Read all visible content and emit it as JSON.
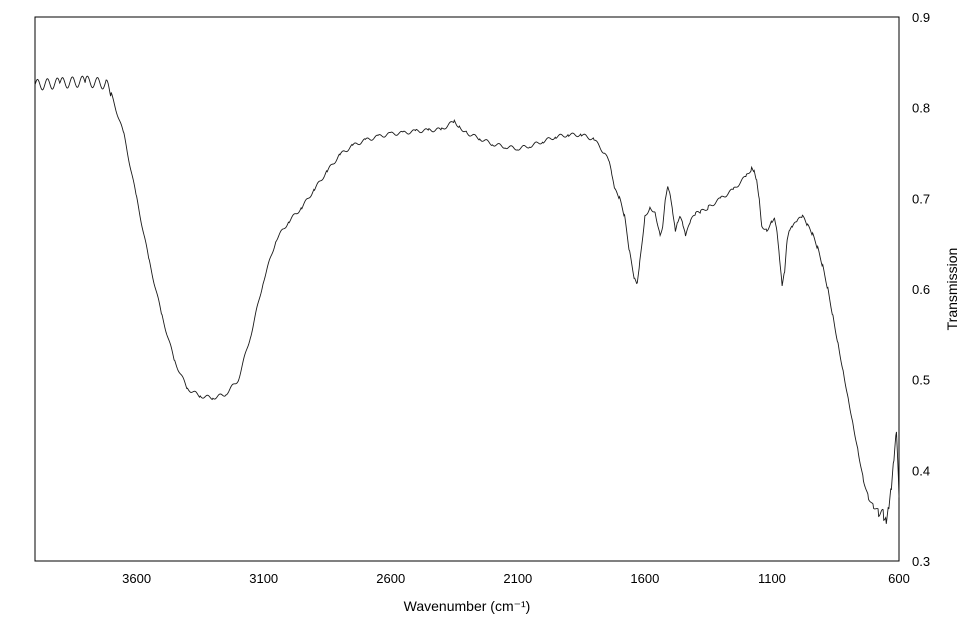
{
  "chart_data": {
    "type": "line",
    "title": "",
    "xlabel": "Wavenumber (cm⁻¹)",
    "ylabel": "Transmission",
    "xlim": [
      4000,
      600
    ],
    "x_reversed": true,
    "ylim": [
      0.3,
      0.9
    ],
    "y_axis_side": "right",
    "x_ticks": [
      3600,
      3100,
      2600,
      2100,
      1600,
      1100,
      600
    ],
    "x_tick_labels": [
      "3600",
      "3100",
      "2600",
      "2100",
      "1600",
      "1100",
      "600"
    ],
    "y_ticks": [
      0.3,
      0.4,
      0.5,
      0.6,
      0.7,
      0.8,
      0.9
    ],
    "y_tick_labels": [
      "0.3",
      "0.4",
      "0.5",
      "0.6",
      "0.7",
      "0.8",
      "0.9"
    ],
    "grid": false,
    "legend": "none",
    "line_color": "#1a1a1a",
    "series": [
      {
        "x": [
          4000,
          3900,
          3800,
          3720,
          3700,
          3650,
          3600,
          3550,
          3500,
          3450,
          3400,
          3350,
          3300,
          3250,
          3200,
          3150,
          3100,
          3050,
          3000,
          2950,
          2900,
          2850,
          2800,
          2750,
          2700,
          2650,
          2600,
          2550,
          2500,
          2450,
          2400,
          2350,
          2330,
          2300,
          2250,
          2200,
          2150,
          2100,
          2050,
          2000,
          1950,
          1900,
          1850,
          1800,
          1760,
          1740,
          1730,
          1720,
          1700,
          1680,
          1660,
          1640,
          1630,
          1620,
          1600,
          1580,
          1560,
          1540,
          1530,
          1520,
          1510,
          1500,
          1490,
          1480,
          1470,
          1460,
          1450,
          1440,
          1420,
          1400,
          1380,
          1350,
          1300,
          1250,
          1200,
          1180,
          1170,
          1160,
          1150,
          1140,
          1120,
          1100,
          1090,
          1080,
          1070,
          1060,
          1050,
          1040,
          1030,
          1020,
          1000,
          980,
          960,
          940,
          920,
          900,
          880,
          860,
          840,
          820,
          800,
          780,
          760,
          740,
          720,
          700,
          680,
          660,
          650,
          640,
          630,
          620,
          610,
          600
        ],
        "y": [
          0.825,
          0.827,
          0.829,
          0.826,
          0.815,
          0.77,
          0.7,
          0.63,
          0.57,
          0.52,
          0.49,
          0.482,
          0.48,
          0.484,
          0.5,
          0.55,
          0.61,
          0.655,
          0.675,
          0.69,
          0.71,
          0.73,
          0.748,
          0.758,
          0.764,
          0.768,
          0.771,
          0.772,
          0.774,
          0.775,
          0.776,
          0.785,
          0.779,
          0.772,
          0.766,
          0.76,
          0.757,
          0.755,
          0.758,
          0.763,
          0.768,
          0.77,
          0.77,
          0.765,
          0.75,
          0.74,
          0.725,
          0.71,
          0.7,
          0.68,
          0.64,
          0.61,
          0.605,
          0.63,
          0.68,
          0.69,
          0.685,
          0.66,
          0.67,
          0.7,
          0.715,
          0.705,
          0.685,
          0.665,
          0.675,
          0.68,
          0.67,
          0.658,
          0.675,
          0.683,
          0.685,
          0.69,
          0.7,
          0.71,
          0.725,
          0.733,
          0.73,
          0.72,
          0.7,
          0.67,
          0.665,
          0.675,
          0.68,
          0.665,
          0.635,
          0.605,
          0.62,
          0.655,
          0.665,
          0.668,
          0.675,
          0.68,
          0.67,
          0.66,
          0.645,
          0.625,
          0.6,
          0.57,
          0.54,
          0.51,
          0.48,
          0.45,
          0.42,
          0.39,
          0.37,
          0.36,
          0.355,
          0.35,
          0.345,
          0.36,
          0.38,
          0.41,
          0.44,
          0.37
        ]
      }
    ]
  }
}
